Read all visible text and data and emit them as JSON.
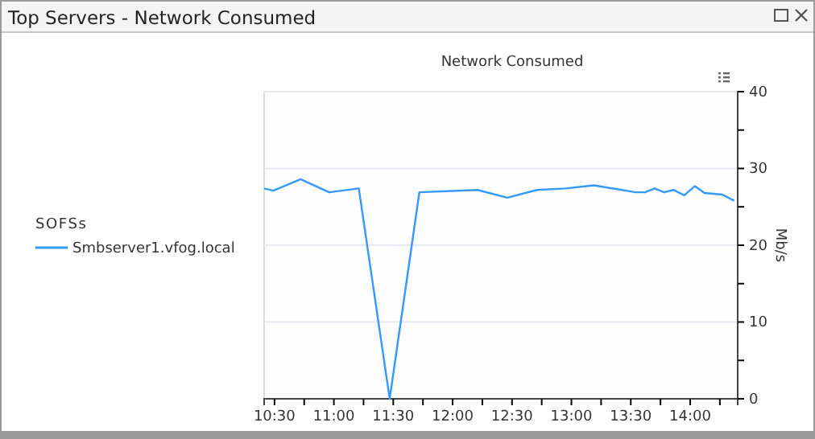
{
  "chart_data": {
    "type": "line",
    "title": "Top Servers - Network Consumed",
    "subtitle": "Network Consumed",
    "y2label": "Mb/s",
    "legend_title": "SOFSs",
    "legend": "left",
    "grid": "y",
    "marker": "none",
    "line_style": "solid",
    "xlim": [
      10.413,
      14.4
    ],
    "xticks": [
      {
        "value": 10.5,
        "label": "10:30"
      },
      {
        "value": 10.75,
        "label": null
      },
      {
        "value": 11,
        "label": "11:00"
      },
      {
        "value": 11.25,
        "label": null
      },
      {
        "value": 11.5,
        "label": "11:30"
      },
      {
        "value": 11.75,
        "label": null
      },
      {
        "value": 12,
        "label": "12:00"
      },
      {
        "value": 12.25,
        "label": null
      },
      {
        "value": 12.5,
        "label": "12:30"
      },
      {
        "value": 12.75,
        "label": null
      },
      {
        "value": 13,
        "label": "13:00"
      },
      {
        "value": 13.25,
        "label": null
      },
      {
        "value": 13.5,
        "label": "13:30"
      },
      {
        "value": 13.75,
        "label": null
      },
      {
        "value": 14,
        "label": "14:00"
      },
      {
        "value": 14.25,
        "label": null
      }
    ],
    "y2lim": [
      0,
      40
    ],
    "y2ticks": [
      0,
      {
        "value": 5,
        "label": null
      },
      10,
      {
        "value": 15,
        "label": null
      },
      20,
      {
        "value": 25,
        "label": null
      },
      30,
      {
        "value": 35,
        "label": null
      },
      40
    ],
    "series": [
      {
        "name": "Smbserver1.vfog.local",
        "color": "#3399ff",
        "axis": "y2",
        "x": [
          10.413,
          10.49,
          10.72,
          10.96,
          11.21,
          11.47,
          11.72,
          12.21,
          12.46,
          12.71,
          12.95,
          13.19,
          13.54,
          13.62,
          13.7,
          13.78,
          13.86,
          13.95,
          14.04,
          14.12,
          14.27,
          14.37
        ],
        "values": [
          27.4,
          27.1,
          28.6,
          26.9,
          27.4,
          0,
          26.9,
          27.2,
          26.2,
          27.2,
          27.4,
          27.8,
          26.9,
          26.9,
          27.4,
          26.9,
          27.2,
          26.5,
          27.7,
          26.8,
          26.6,
          25.8
        ]
      }
    ]
  }
}
